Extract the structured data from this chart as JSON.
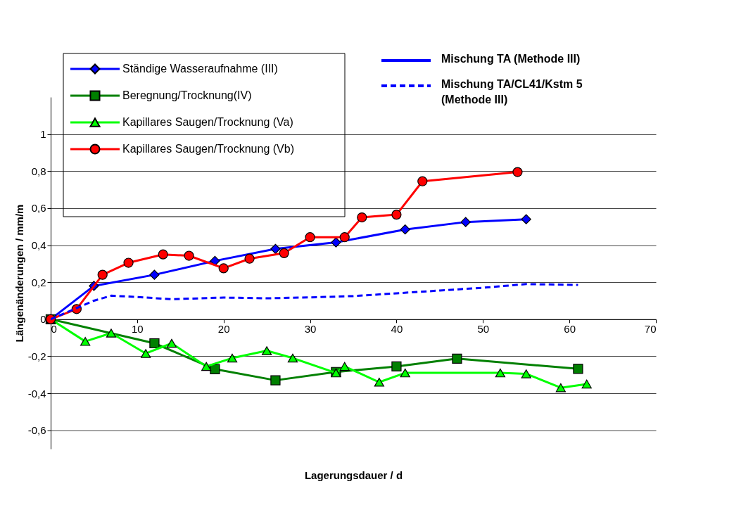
{
  "chart_data": {
    "type": "line",
    "xlabel": "Lagerungsdauer / d",
    "ylabel": "Längenänderungen  / mm/m",
    "xlim": [
      0,
      70
    ],
    "xticks": [
      0,
      10,
      20,
      30,
      40,
      50,
      60,
      70
    ],
    "ylim": [
      -0.7,
      1.2
    ],
    "yticks": [
      {
        "value": -0.6,
        "label": "-0,6"
      },
      {
        "value": -0.4,
        "label": "-0,4"
      },
      {
        "value": -0.2,
        "label": "-0,2"
      },
      0,
      {
        "value": 0.2,
        "label": "0,2"
      },
      {
        "value": 0.4,
        "label": "0,4"
      },
      {
        "value": 0.6,
        "label": "0,6"
      },
      {
        "value": 0.8,
        "label": "0,8"
      },
      1
    ],
    "grid": "y",
    "legend": "top left",
    "annotations": [
      "Mischung TA (Methode III)"
    ],
    "series": [
      {
        "name": "Ständige Wasseraufnahme (III)",
        "color": "#0000ff",
        "marker": "diamond",
        "line_style": "solid",
        "x": [
          0,
          5,
          12,
          19,
          26,
          33,
          41,
          48,
          55
        ],
        "values": [
          0,
          0.18,
          0.24,
          0.315,
          0.38,
          0.415,
          0.485,
          0.525,
          0.54
        ]
      },
      {
        "name": "Beregnung/Trocknung(IV)",
        "color": "#008000",
        "marker": "square",
        "line_style": "solid",
        "x": [
          0,
          12,
          19,
          26,
          33,
          40,
          47,
          61
        ],
        "values": [
          0,
          -0.13,
          -0.27,
          -0.33,
          -0.285,
          -0.255,
          -0.213,
          -0.268
        ]
      },
      {
        "name": "Kapillares Saugen/Trocknung (Va)",
        "color": "#00ff00",
        "marker": "triangle",
        "line_style": "solid",
        "x": [
          0,
          4,
          7,
          11,
          14,
          18,
          21,
          25,
          28,
          33,
          34,
          38,
          41,
          52,
          55,
          59,
          62
        ],
        "values": [
          0,
          -0.12,
          -0.075,
          -0.185,
          -0.13,
          -0.255,
          -0.21,
          -0.17,
          -0.21,
          -0.29,
          -0.255,
          -0.34,
          -0.29,
          -0.29,
          -0.295,
          -0.37,
          -0.35
        ]
      },
      {
        "name": "Kapillares Saugen/Trocknung (Vb)",
        "color": "#ff0000",
        "marker": "circle",
        "line_style": "solid",
        "x": [
          0,
          3,
          6,
          9,
          13,
          16,
          20,
          23,
          27,
          30,
          34,
          36,
          40,
          43,
          54
        ],
        "values": [
          0,
          0.055,
          0.24,
          0.305,
          0.35,
          0.343,
          0.275,
          0.327,
          0.357,
          0.443,
          0.443,
          0.55,
          0.565,
          0.745,
          0.795
        ]
      },
      {
        "name": "Mischung TA/CL41/Kstm 5\n(Methode III)",
        "color": "#0000ff",
        "marker": "none",
        "line_style": "dashed",
        "x": [
          0,
          3,
          5,
          7,
          10,
          14,
          20,
          25,
          30,
          35,
          40,
          45,
          50,
          55,
          61
        ],
        "values": [
          0,
          0.06,
          0.1,
          0.127,
          0.12,
          0.108,
          0.117,
          0.113,
          0.118,
          0.125,
          0.14,
          0.155,
          0.17,
          0.19,
          0.185
        ]
      }
    ]
  }
}
